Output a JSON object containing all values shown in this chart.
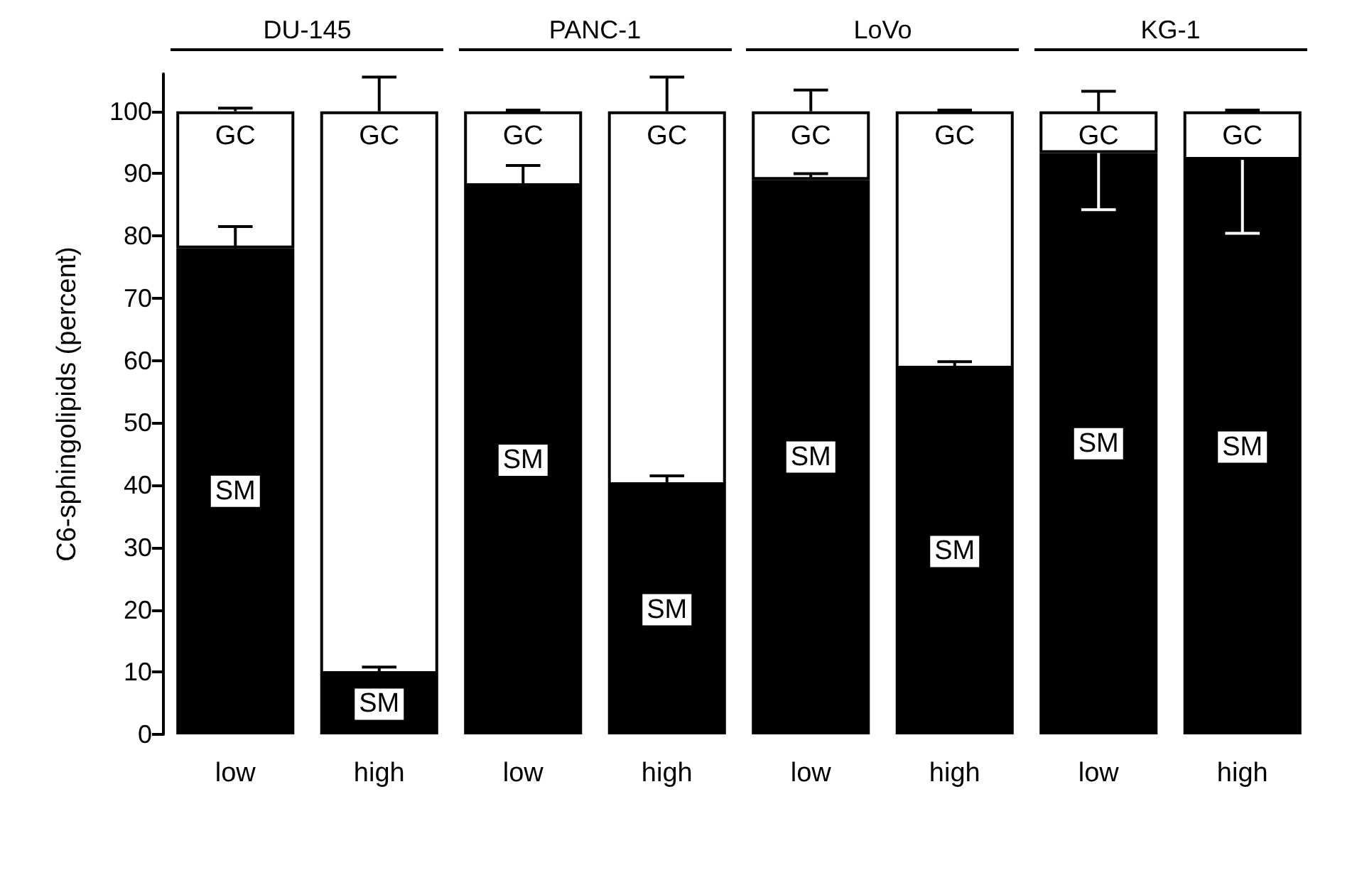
{
  "chart_data": {
    "type": "bar",
    "stacked": true,
    "ylabel": "C6-sphingolipids (percent)",
    "categories": [
      "low",
      "high",
      "low",
      "high",
      "low",
      "high",
      "low",
      "high"
    ],
    "series": [
      {
        "name": "SM",
        "color": "#000000",
        "values": [
          78,
          9.7,
          88,
          40,
          89,
          58.7,
          93.3,
          92.2
        ],
        "errors": [
          [
            78,
            81.5
          ],
          [
            9.7,
            10.8
          ],
          [
            88,
            91.3
          ],
          [
            40,
            41.5
          ],
          [
            89,
            90
          ],
          [
            58.7,
            59.8
          ],
          [
            84.2,
            93.3
          ],
          [
            80.4,
            92.2
          ]
        ]
      },
      {
        "name": "GC",
        "color": "#ffffff",
        "values": [
          22,
          90.3,
          12,
          60,
          11,
          41.3,
          6.7,
          7.8
        ],
        "errors": [
          [
            100,
            100.5
          ],
          [
            100,
            105.5
          ],
          [
            100,
            100.2
          ],
          [
            100,
            105.5
          ],
          [
            100,
            103.4
          ],
          [
            100,
            100.2
          ],
          [
            100,
            103.2
          ],
          [
            100,
            100.2
          ]
        ]
      }
    ],
    "annotations": [
      "DU-145",
      "PANC-1",
      "LoVo",
      "KG-1"
    ],
    "ylim": [
      0,
      106
    ],
    "yticks": [
      0,
      10,
      20,
      30,
      40,
      50,
      60,
      70,
      80,
      90,
      100
    ],
    "grid": false,
    "legend": false
  }
}
